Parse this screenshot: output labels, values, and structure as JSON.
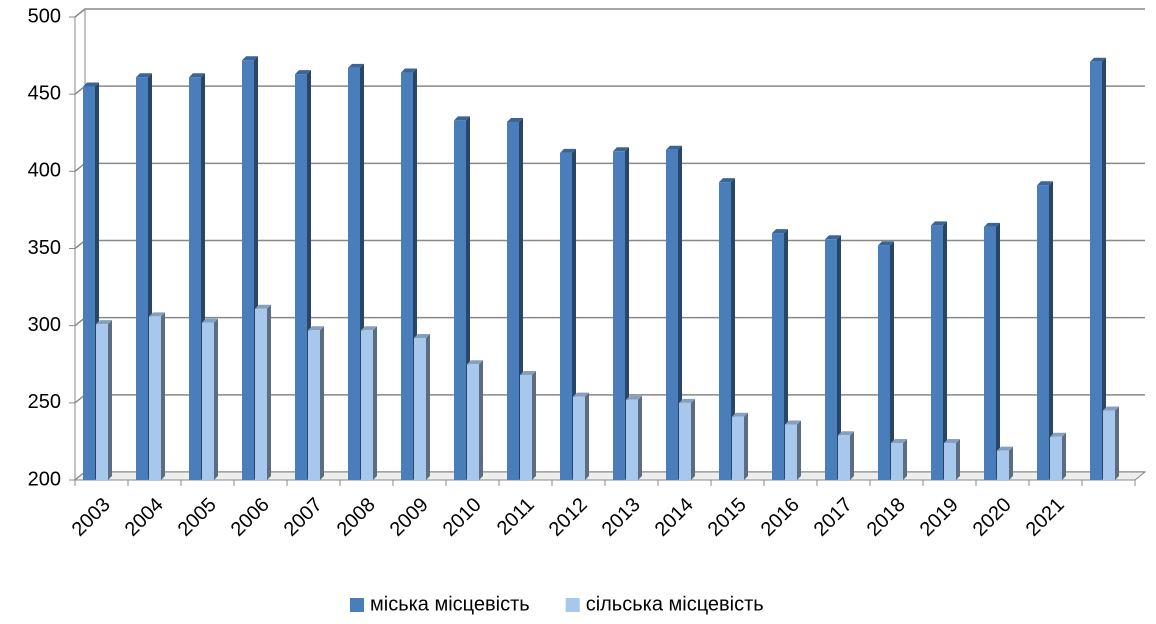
{
  "chart_data": {
    "type": "bar",
    "categories": [
      "2003",
      "2004",
      "2005",
      "2006",
      "2007",
      "2008",
      "2009",
      "2010",
      "2011",
      "2012",
      "2013",
      "2014",
      "2015",
      "2016",
      "2017",
      "2018",
      "2019",
      "2020",
      "2021",
      null
    ],
    "series": [
      {
        "name": "міська місцевість",
        "color": "#4a7ebb",
        "values": [
          455,
          461,
          461,
          472,
          463,
          467,
          464,
          433,
          432,
          412,
          413,
          414,
          393,
          360,
          356,
          352,
          365,
          364,
          391,
          471
        ]
      },
      {
        "name": "сільська місцевість",
        "color": "#a7c7ec",
        "values": [
          301,
          306,
          302,
          311,
          297,
          297,
          292,
          275,
          268,
          254,
          252,
          250,
          241,
          236,
          229,
          224,
          224,
          219,
          228,
          245
        ]
      }
    ],
    "ylim": [
      200,
      500
    ],
    "yticks": [
      200,
      250,
      300,
      350,
      400,
      450,
      500
    ],
    "grid": true,
    "legend": "bottom"
  }
}
